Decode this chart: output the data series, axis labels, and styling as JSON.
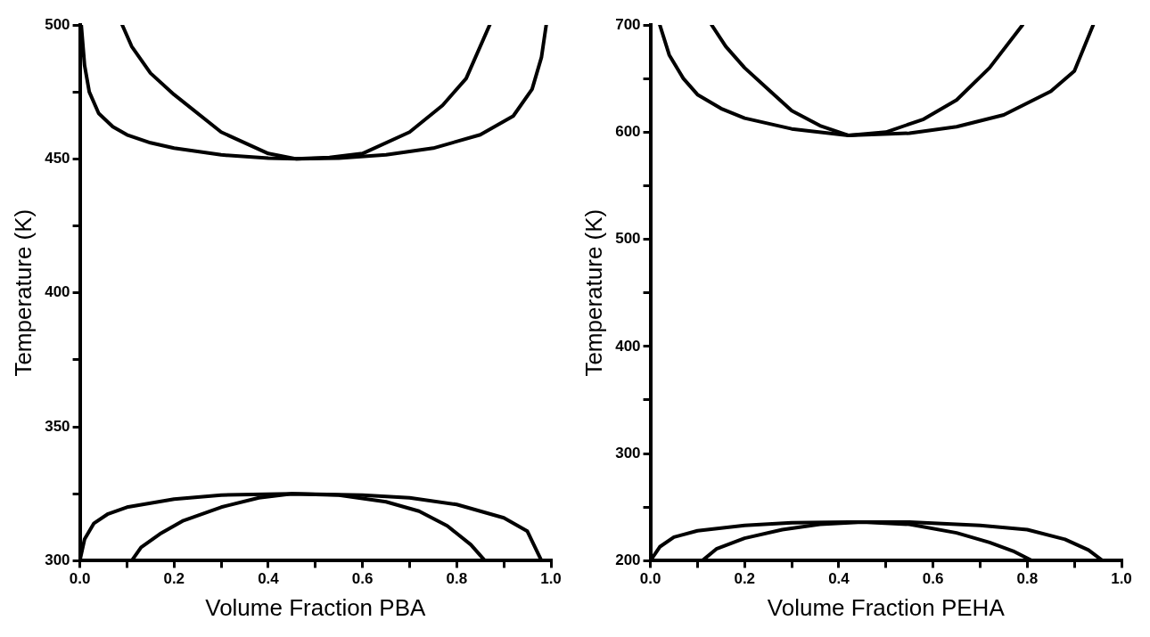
{
  "chart_data": [
    {
      "type": "line",
      "xlabel": "Volume Fraction PBA",
      "ylabel": "Temperature (K)",
      "xlim": [
        0,
        1
      ],
      "ylim": [
        300,
        500
      ],
      "marker": "none",
      "line_style": "solid",
      "xticks": [
        {
          "value": 0,
          "label": "0.0"
        },
        {
          "value": 0.1,
          "label": null
        },
        {
          "value": 0.2,
          "label": "0.2"
        },
        {
          "value": 0.3,
          "label": null
        },
        {
          "value": 0.4,
          "label": "0.4"
        },
        {
          "value": 0.5,
          "label": null
        },
        {
          "value": 0.6,
          "label": "0.6"
        },
        {
          "value": 0.7,
          "label": null
        },
        {
          "value": 0.8,
          "label": "0.8"
        },
        {
          "value": 0.9,
          "label": null
        },
        {
          "value": 1,
          "label": "1.0"
        }
      ],
      "yticks": [
        300,
        {
          "value": 325,
          "label": null
        },
        350,
        {
          "value": 375,
          "label": null
        },
        400,
        {
          "value": 425,
          "label": null
        },
        450,
        {
          "value": 475,
          "label": null
        },
        500
      ],
      "series": [
        {
          "color": "#000000",
          "x": [
            0.003,
            0.01,
            0.02,
            0.04,
            0.07,
            0.1,
            0.15,
            0.2,
            0.3,
            0.4,
            0.46,
            0.55,
            0.65,
            0.75,
            0.85,
            0.92,
            0.96,
            0.98,
            0.99
          ],
          "values": [
            500,
            485,
            475,
            467,
            462,
            459,
            456,
            454,
            451.5,
            450.3,
            450,
            450.3,
            451.5,
            454,
            459,
            466,
            476,
            488,
            500
          ]
        },
        {
          "color": "#000000",
          "x": [
            0.09,
            0.11,
            0.15,
            0.2,
            0.3,
            0.4,
            0.46,
            0.53,
            0.6,
            0.7,
            0.77,
            0.82,
            0.87
          ],
          "values": [
            500,
            492,
            482,
            474,
            460,
            452,
            450,
            450.5,
            452,
            460,
            470,
            480,
            500
          ]
        },
        {
          "color": "#000000",
          "x": [
            0,
            0.01,
            0.03,
            0.06,
            0.1,
            0.2,
            0.3,
            0.45,
            0.6,
            0.7,
            0.8,
            0.9,
            0.95,
            0.98
          ],
          "values": [
            300,
            308,
            314,
            317.5,
            320,
            323,
            324.5,
            325,
            324.5,
            323.5,
            321,
            316,
            311,
            300
          ]
        },
        {
          "color": "#000000",
          "x": [
            0.11,
            0.13,
            0.17,
            0.22,
            0.3,
            0.38,
            0.45,
            0.55,
            0.65,
            0.72,
            0.78,
            0.83,
            0.86
          ],
          "values": [
            300,
            305,
            310,
            315,
            320,
            323.5,
            325,
            324.5,
            322,
            318.5,
            313,
            306,
            300
          ]
        }
      ]
    },
    {
      "type": "line",
      "xlabel": "Volume Fraction PEHA",
      "ylabel": "Temperature (K)",
      "xlim": [
        0,
        1
      ],
      "ylim": [
        200,
        700
      ],
      "marker": "none",
      "line_style": "solid",
      "xticks": [
        {
          "value": 0,
          "label": "0.0"
        },
        {
          "value": 0.1,
          "label": null
        },
        {
          "value": 0.2,
          "label": "0.2"
        },
        {
          "value": 0.3,
          "label": null
        },
        {
          "value": 0.4,
          "label": "0.4"
        },
        {
          "value": 0.5,
          "label": null
        },
        {
          "value": 0.6,
          "label": "0.6"
        },
        {
          "value": 0.7,
          "label": null
        },
        {
          "value": 0.8,
          "label": "0.8"
        },
        {
          "value": 0.9,
          "label": null
        },
        {
          "value": 1,
          "label": "1.0"
        }
      ],
      "yticks": [
        200,
        {
          "value": 250,
          "label": null
        },
        300,
        {
          "value": 350,
          "label": null
        },
        400,
        {
          "value": 450,
          "label": null
        },
        500,
        {
          "value": 550,
          "label": null
        },
        600,
        {
          "value": 650,
          "label": null
        },
        700
      ],
      "series": [
        {
          "color": "#000000",
          "x": [
            0.02,
            0.04,
            0.07,
            0.1,
            0.15,
            0.2,
            0.3,
            0.42,
            0.55,
            0.65,
            0.75,
            0.85,
            0.9,
            0.94
          ],
          "values": [
            700,
            672,
            650,
            635,
            622,
            613,
            603,
            597,
            599,
            605,
            616,
            638,
            657,
            700
          ]
        },
        {
          "color": "#000000",
          "x": [
            0.13,
            0.16,
            0.2,
            0.25,
            0.3,
            0.36,
            0.42,
            0.5,
            0.58,
            0.65,
            0.72,
            0.79
          ],
          "values": [
            700,
            680,
            660,
            640,
            620,
            606,
            597,
            600,
            612,
            630,
            660,
            700
          ]
        },
        {
          "color": "#000000",
          "x": [
            0,
            0.02,
            0.05,
            0.1,
            0.2,
            0.3,
            0.42,
            0.55,
            0.7,
            0.8,
            0.88,
            0.93,
            0.96
          ],
          "values": [
            200,
            213,
            222,
            228,
            233,
            235.5,
            236,
            236,
            233,
            229,
            220,
            210,
            200
          ]
        },
        {
          "color": "#000000",
          "x": [
            0.11,
            0.14,
            0.2,
            0.28,
            0.36,
            0.45,
            0.55,
            0.65,
            0.72,
            0.77,
            0.81
          ],
          "values": [
            200,
            211,
            221,
            229,
            234,
            236,
            234,
            226,
            217,
            209,
            200
          ]
        }
      ]
    }
  ]
}
